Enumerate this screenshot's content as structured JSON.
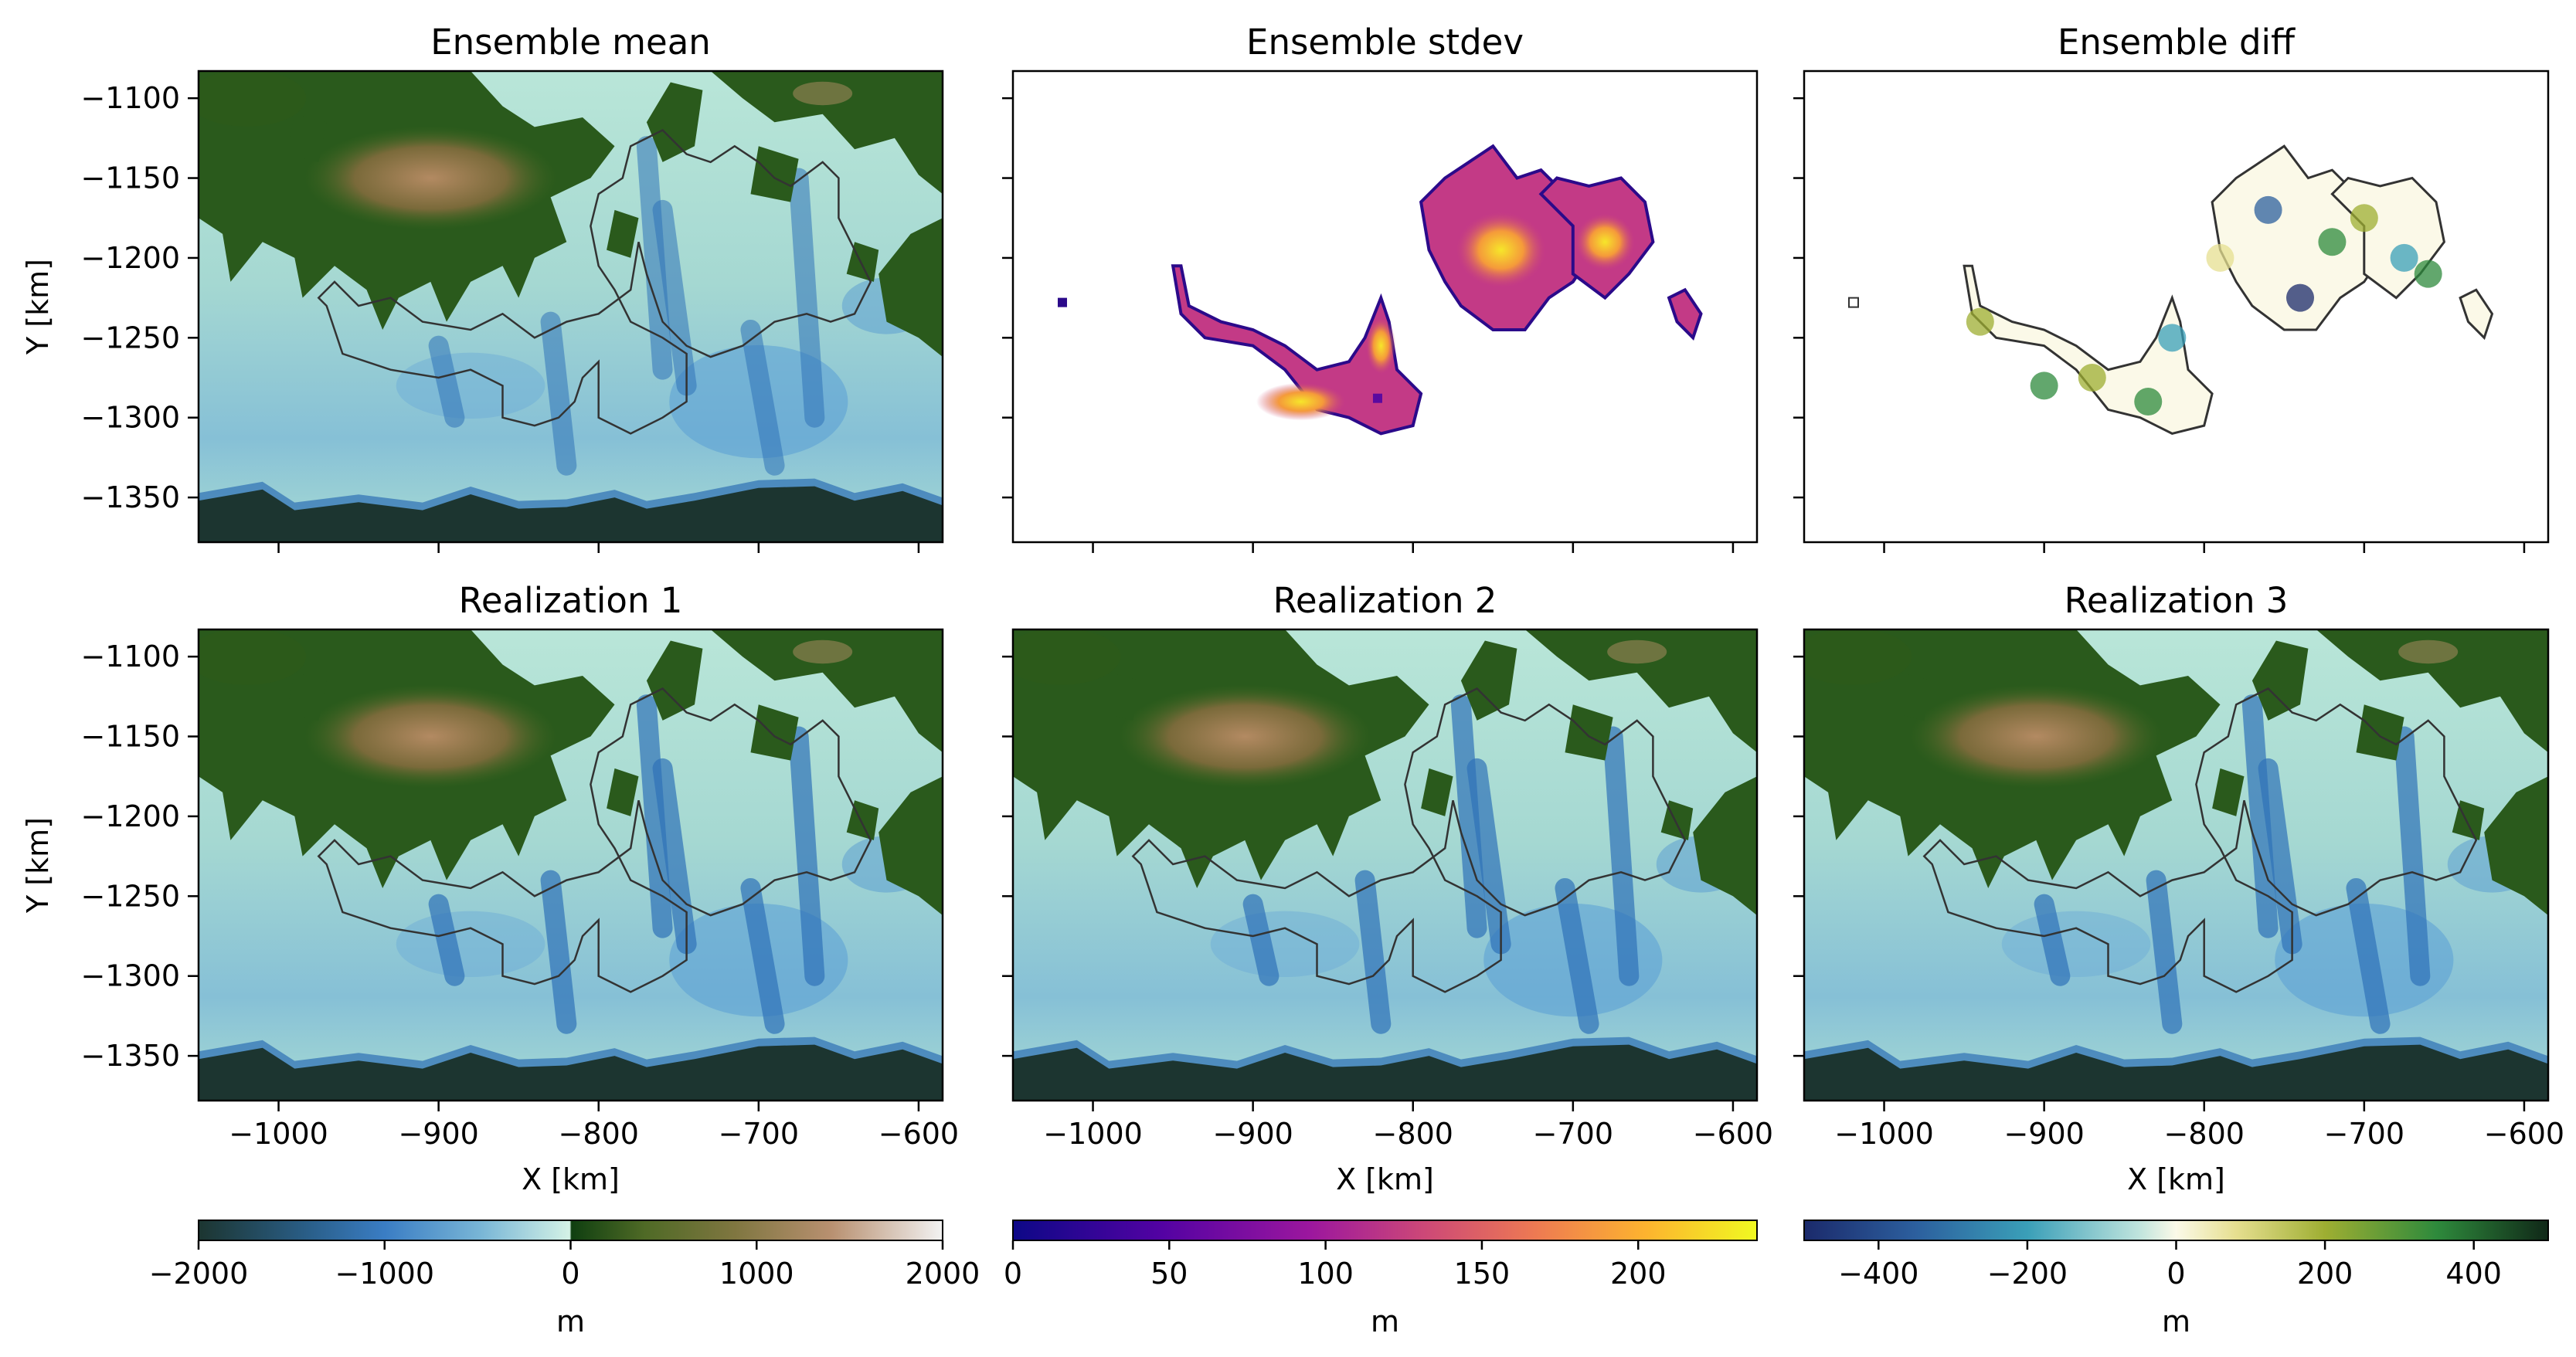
{
  "chart_data": {
    "type": "heatmap",
    "layout": "2x3 grid of map panels with 3 colorbars",
    "x_label": "X [km]",
    "y_label": "Y [km]",
    "xlim": [
      -1050,
      -585
    ],
    "ylim": [
      -1378,
      -1083
    ],
    "x_ticks": [
      -1000,
      -900,
      -800,
      -700,
      -600
    ],
    "x_tick_labels": [
      "−1000",
      "−900",
      "−800",
      "−700",
      "−600"
    ],
    "y_ticks": [
      -1100,
      -1150,
      -1200,
      -1250,
      -1300,
      -1350
    ],
    "y_tick_labels": [
      "−1100",
      "−1150",
      "−1200",
      "−1250",
      "−1300",
      "−1350"
    ],
    "panels": [
      {
        "title": "Ensemble mean",
        "kind": "topography",
        "colorbar": 0
      },
      {
        "title": "Ensemble stdev",
        "kind": "stdev",
        "colorbar": 1
      },
      {
        "title": "Ensemble diff",
        "kind": "diff",
        "colorbar": 2
      },
      {
        "title": "Realization 1",
        "kind": "topography",
        "colorbar": 0
      },
      {
        "title": "Realization 2",
        "kind": "topography",
        "colorbar": 0
      },
      {
        "title": "Realization 3",
        "kind": "topography",
        "colorbar": 0
      }
    ],
    "colorbars": [
      {
        "colormap": "topography (ocean below 0, terrain above 0)",
        "range": [
          -2000,
          2000
        ],
        "ticks": [
          -2000,
          -1000,
          0,
          1000,
          2000
        ],
        "tick_labels": [
          "−2000",
          "−1000",
          "0",
          "1000",
          "2000"
        ],
        "label": "m"
      },
      {
        "colormap": "plasma",
        "range": [
          0,
          238
        ],
        "ticks": [
          0,
          50,
          100,
          150,
          200
        ],
        "tick_labels": [
          "0",
          "50",
          "100",
          "150",
          "200"
        ],
        "label": "m"
      },
      {
        "colormap": "diverging (blue-white-green)",
        "range": [
          -500,
          500
        ],
        "ticks": [
          -400,
          -200,
          0,
          200,
          400
        ],
        "tick_labels": [
          "−400",
          "−200",
          "0",
          "200",
          "400"
        ],
        "label": "m"
      }
    ],
    "colors": {
      "deep": "#1c3530",
      "ocean_mid": "#3a7dc4",
      "ocean_light": "#c8ecde",
      "land_dark": "#2a5a1c",
      "land_mid": "#7a6a3a",
      "land_high": "#b89070",
      "stdev_low": "#2b0a8a",
      "stdev_high": "#f6e62a",
      "diff_neg": "#1b2a6b",
      "diff_zero": "#fbf9e8",
      "diff_pos": "#1c3320",
      "outline": "#333333"
    }
  }
}
